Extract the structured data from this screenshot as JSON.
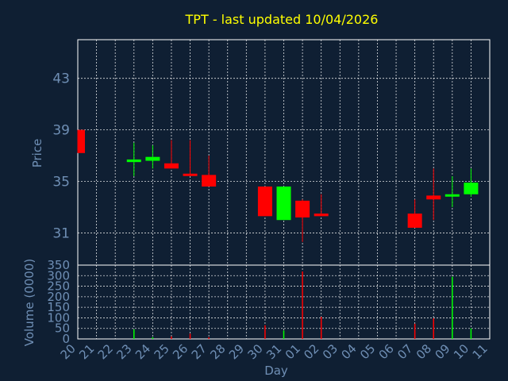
{
  "chart_data": [
    {
      "type": "candlestick",
      "title": "TPT - last updated 10/04/2026",
      "ylabel": "Price",
      "ylim": [
        28.5,
        46.0
      ],
      "yticks": [
        31,
        35,
        39,
        43
      ],
      "categories": [
        "20",
        "21",
        "22",
        "23",
        "24",
        "25",
        "26",
        "27",
        "28",
        "29",
        "30",
        "31",
        "01",
        "02",
        "03",
        "04",
        "05",
        "06",
        "07",
        "08",
        "09",
        "10",
        "11"
      ],
      "up_color": "#00ff00",
      "down_color": "#ff0000",
      "grid": true,
      "candles": [
        {
          "day": "20",
          "open": 39.0,
          "high": 39.0,
          "low": 37.2,
          "close": 37.2
        },
        {
          "day": "23",
          "open": 36.5,
          "high": 38.0,
          "low": 35.4,
          "close": 36.7
        },
        {
          "day": "24",
          "open": 36.6,
          "high": 37.8,
          "low": 36.0,
          "close": 36.9
        },
        {
          "day": "25",
          "open": 36.4,
          "high": 38.2,
          "low": 36.0,
          "close": 36.0
        },
        {
          "day": "26",
          "open": 35.6,
          "high": 38.2,
          "low": 35.5,
          "close": 35.5
        },
        {
          "day": "27",
          "open": 35.5,
          "high": 37.0,
          "low": 34.6,
          "close": 34.6
        },
        {
          "day": "30",
          "open": 34.6,
          "high": 34.6,
          "low": 32.3,
          "close": 32.3
        },
        {
          "day": "31",
          "open": 32.0,
          "high": 34.6,
          "low": 32.0,
          "close": 34.6
        },
        {
          "day": "01",
          "open": 33.5,
          "high": 33.6,
          "low": 30.3,
          "close": 32.2
        },
        {
          "day": "02",
          "open": 32.5,
          "high": 34.0,
          "low": 32.3,
          "close": 32.3
        },
        {
          "day": "07",
          "open": 32.5,
          "high": 33.6,
          "low": 31.4,
          "close": 31.4
        },
        {
          "day": "08",
          "open": 33.9,
          "high": 36.0,
          "low": 32.0,
          "close": 33.6
        },
        {
          "day": "09",
          "open": 33.9,
          "high": 35.4,
          "low": 33.0,
          "close": 34.0
        },
        {
          "day": "10",
          "open": 34.0,
          "high": 36.0,
          "low": 33.8,
          "close": 34.9
        }
      ]
    },
    {
      "type": "bar",
      "ylabel": "Volume (0000)",
      "xlabel": "Day",
      "ylim": [
        0,
        350
      ],
      "yticks": [
        0,
        50,
        100,
        150,
        200,
        250,
        300,
        350
      ],
      "categories": [
        "20",
        "21",
        "22",
        "23",
        "24",
        "25",
        "26",
        "27",
        "28",
        "29",
        "30",
        "31",
        "01",
        "02",
        "03",
        "04",
        "05",
        "06",
        "07",
        "08",
        "09",
        "10",
        "11"
      ],
      "bars": [
        {
          "day": "20",
          "value": 0,
          "direction": "down"
        },
        {
          "day": "23",
          "value": 45,
          "direction": "up"
        },
        {
          "day": "24",
          "value": 8,
          "direction": "up"
        },
        {
          "day": "25",
          "value": 12,
          "direction": "down"
        },
        {
          "day": "26",
          "value": 25,
          "direction": "down"
        },
        {
          "day": "27",
          "value": 8,
          "direction": "down"
        },
        {
          "day": "30",
          "value": 65,
          "direction": "down"
        },
        {
          "day": "31",
          "value": 40,
          "direction": "up"
        },
        {
          "day": "01",
          "value": 320,
          "direction": "down"
        },
        {
          "day": "02",
          "value": 105,
          "direction": "down"
        },
        {
          "day": "07",
          "value": 72,
          "direction": "down"
        },
        {
          "day": "08",
          "value": 98,
          "direction": "down"
        },
        {
          "day": "09",
          "value": 295,
          "direction": "up"
        },
        {
          "day": "10",
          "value": 50,
          "direction": "up"
        }
      ]
    }
  ]
}
